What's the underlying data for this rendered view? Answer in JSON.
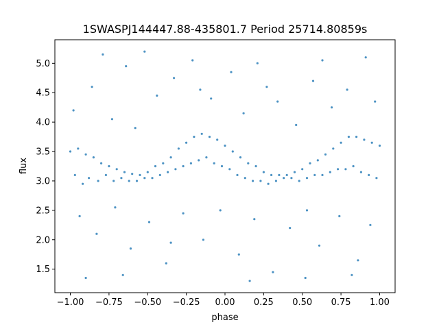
{
  "chart_data": {
    "type": "scatter",
    "title": "1SWASPJ144447.88-435801.7 Period 25714.80859s",
    "xlabel": "phase",
    "ylabel": "flux",
    "xlim": [
      -1.1,
      1.1
    ],
    "ylim": [
      1.1,
      5.4
    ],
    "x_ticks": [
      -1.0,
      -0.75,
      -0.5,
      -0.25,
      0.0,
      0.25,
      0.5,
      0.75,
      1.0
    ],
    "x_tick_labels": [
      "−1.00",
      "−0.75",
      "−0.50",
      "−0.25",
      "0.00",
      "0.25",
      "0.50",
      "0.75",
      "1.00"
    ],
    "y_ticks": [
      1.5,
      2.0,
      2.5,
      3.0,
      3.5,
      4.0,
      4.5,
      5.0
    ],
    "y_tick_labels": [
      "1.5",
      "2.0",
      "2.5",
      "3.0",
      "3.5",
      "4.0",
      "4.5",
      "5.0"
    ],
    "grid": false,
    "legend": "none",
    "marker_color": "#1f77b4",
    "series": [
      {
        "points": [
          [
            -1.0,
            3.5
          ],
          [
            -0.97,
            3.1
          ],
          [
            -0.95,
            3.55
          ],
          [
            -0.92,
            2.95
          ],
          [
            -0.9,
            3.45
          ],
          [
            -0.88,
            3.05
          ],
          [
            -0.85,
            3.4
          ],
          [
            -0.82,
            3.0
          ],
          [
            -0.8,
            3.3
          ],
          [
            -0.77,
            3.1
          ],
          [
            -0.75,
            3.25
          ],
          [
            -0.72,
            3.0
          ],
          [
            -0.7,
            3.2
          ],
          [
            -0.67,
            3.05
          ],
          [
            -0.65,
            3.15
          ],
          [
            -0.62,
            3.0
          ],
          [
            -0.6,
            3.12
          ],
          [
            -0.57,
            3.0
          ],
          [
            -0.55,
            3.1
          ],
          [
            -0.52,
            3.05
          ],
          [
            -0.5,
            3.15
          ],
          [
            -0.47,
            3.05
          ],
          [
            -0.45,
            3.25
          ],
          [
            -0.42,
            3.1
          ],
          [
            -0.4,
            3.3
          ],
          [
            -0.37,
            3.15
          ],
          [
            -0.35,
            3.4
          ],
          [
            -0.32,
            3.2
          ],
          [
            -0.3,
            3.55
          ],
          [
            -0.27,
            3.25
          ],
          [
            -0.25,
            3.65
          ],
          [
            -0.22,
            3.3
          ],
          [
            -0.2,
            3.75
          ],
          [
            -0.17,
            3.35
          ],
          [
            -0.15,
            3.8
          ],
          [
            -0.12,
            3.4
          ],
          [
            -0.1,
            3.75
          ],
          [
            -0.07,
            3.3
          ],
          [
            -0.05,
            3.7
          ],
          [
            -0.02,
            3.25
          ],
          [
            0.0,
            3.6
          ],
          [
            0.03,
            3.2
          ],
          [
            0.05,
            3.5
          ],
          [
            0.08,
            3.1
          ],
          [
            0.1,
            3.4
          ],
          [
            0.13,
            3.05
          ],
          [
            0.15,
            3.3
          ],
          [
            0.18,
            3.0
          ],
          [
            0.2,
            3.25
          ],
          [
            0.23,
            3.0
          ],
          [
            0.25,
            3.15
          ],
          [
            0.28,
            2.95
          ],
          [
            0.3,
            3.1
          ],
          [
            0.33,
            3.0
          ],
          [
            0.35,
            3.1
          ],
          [
            0.38,
            3.05
          ],
          [
            0.4,
            3.1
          ],
          [
            0.43,
            3.05
          ],
          [
            0.45,
            3.15
          ],
          [
            0.48,
            3.0
          ],
          [
            0.5,
            3.2
          ],
          [
            0.53,
            3.05
          ],
          [
            0.55,
            3.3
          ],
          [
            0.58,
            3.1
          ],
          [
            0.6,
            3.35
          ],
          [
            0.63,
            3.1
          ],
          [
            0.65,
            3.45
          ],
          [
            0.68,
            3.15
          ],
          [
            0.7,
            3.55
          ],
          [
            0.73,
            3.2
          ],
          [
            0.75,
            3.65
          ],
          [
            0.78,
            3.2
          ],
          [
            0.8,
            3.75
          ],
          [
            0.83,
            3.25
          ],
          [
            0.85,
            3.75
          ],
          [
            0.88,
            3.15
          ],
          [
            0.9,
            3.7
          ],
          [
            0.93,
            3.1
          ],
          [
            0.95,
            3.65
          ],
          [
            0.98,
            3.05
          ],
          [
            1.0,
            3.6
          ],
          [
            -0.98,
            4.2
          ],
          [
            -0.86,
            4.6
          ],
          [
            -0.73,
            4.05
          ],
          [
            -0.64,
            4.95
          ],
          [
            -0.58,
            3.9
          ],
          [
            -0.44,
            4.45
          ],
          [
            -0.33,
            4.75
          ],
          [
            -0.21,
            5.05
          ],
          [
            -0.09,
            4.4
          ],
          [
            0.04,
            4.85
          ],
          [
            0.12,
            4.15
          ],
          [
            0.21,
            5.0
          ],
          [
            0.34,
            4.35
          ],
          [
            0.46,
            3.95
          ],
          [
            0.57,
            4.7
          ],
          [
            0.69,
            4.25
          ],
          [
            0.79,
            4.55
          ],
          [
            0.91,
            5.1
          ],
          [
            0.97,
            4.35
          ],
          [
            -0.79,
            5.15
          ],
          [
            -0.52,
            5.2
          ],
          [
            0.27,
            4.6
          ],
          [
            0.63,
            5.05
          ],
          [
            -0.16,
            4.55
          ],
          [
            -0.94,
            2.4
          ],
          [
            -0.83,
            2.1
          ],
          [
            -0.71,
            2.55
          ],
          [
            -0.61,
            1.85
          ],
          [
            -0.49,
            2.3
          ],
          [
            -0.38,
            1.6
          ],
          [
            -0.27,
            2.45
          ],
          [
            -0.14,
            2.0
          ],
          [
            -0.03,
            2.5
          ],
          [
            0.09,
            1.75
          ],
          [
            0.19,
            2.35
          ],
          [
            0.31,
            1.45
          ],
          [
            0.42,
            2.2
          ],
          [
            0.53,
            2.5
          ],
          [
            0.61,
            1.9
          ],
          [
            0.74,
            2.4
          ],
          [
            0.86,
            1.65
          ],
          [
            0.94,
            2.25
          ],
          [
            -0.9,
            1.35
          ],
          [
            -0.66,
            1.4
          ],
          [
            0.16,
            1.3
          ],
          [
            0.52,
            1.35
          ],
          [
            0.82,
            1.4
          ],
          [
            -0.35,
            1.95
          ]
        ]
      }
    ]
  }
}
